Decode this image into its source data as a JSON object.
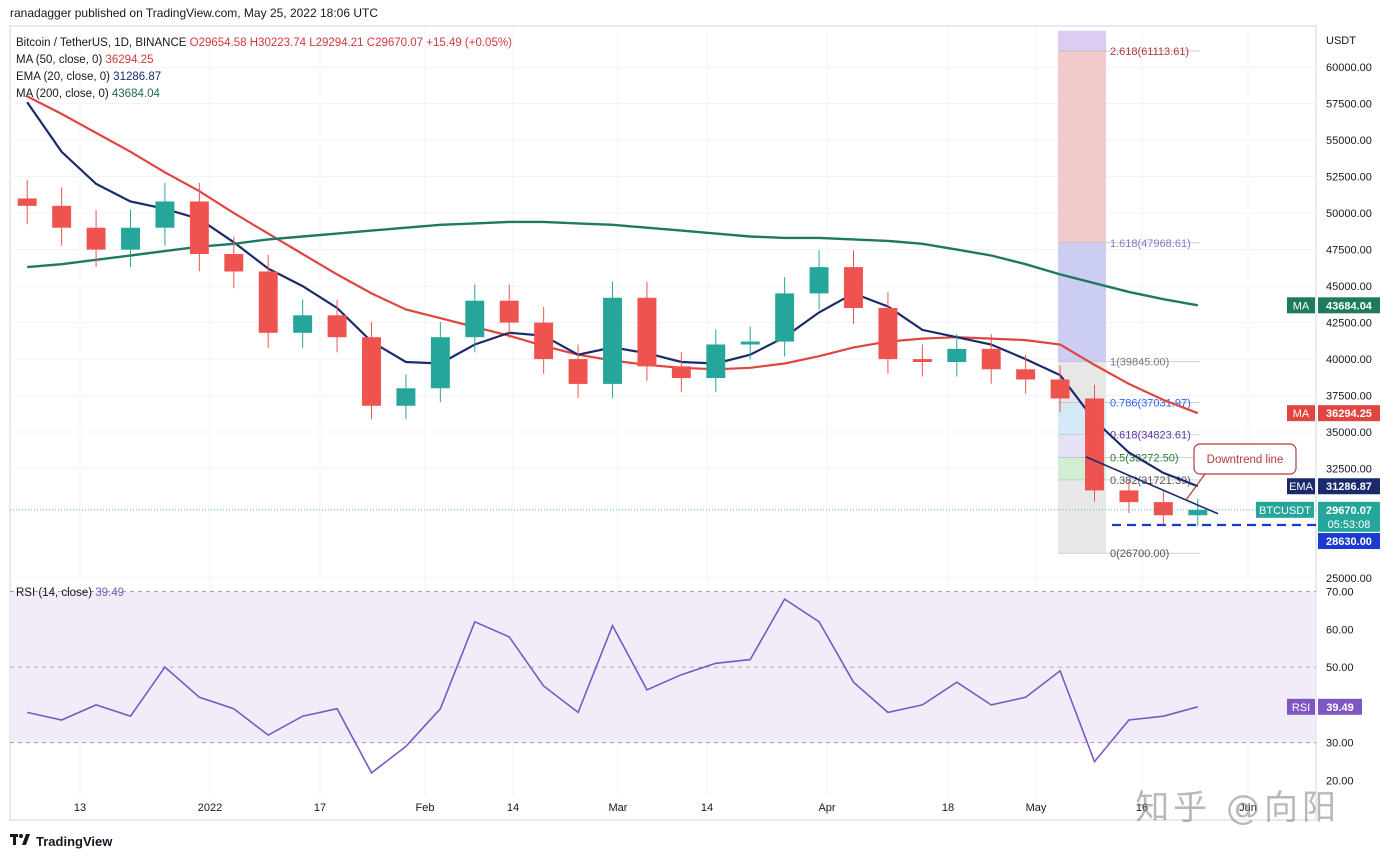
{
  "header": {
    "publisher": "ranadagger published on TradingView.com, May 25, 2022 18:06 UTC",
    "symbol": "Bitcoin / TetherUS, 1D, BINANCE",
    "ohlc": "O29654.58 H30223.74 L29294.21 C29670.07 +15.49 (+0.05%)",
    "ma50_label": "MA (50, close, 0)",
    "ma50_value": "36294.25",
    "ema20_label": "EMA (20, close, 0)",
    "ema20_value": "31286.87",
    "ma200_label": "MA (200, close, 0)",
    "ma200_value": "43684.04"
  },
  "rsi_legend": {
    "label": "RSI (14, close)",
    "value": "39.49"
  },
  "footer": {
    "brand": "TradingView",
    "logo": "tradingview-logo-icon"
  },
  "watermark": "知乎 @向阳",
  "colors": {
    "up": "#26a69a",
    "down": "#ef5350",
    "ma50": "#e0453f",
    "ema20": "#1a2a6c",
    "ma200": "#1e7a5f",
    "rsi": "#7e57c2",
    "rsi_band": "#ede7f6"
  },
  "chart_data": [
    {
      "type": "line",
      "title": "",
      "ylabel": "USDT",
      "xlabel": "",
      "x_tick_labels": [
        "13",
        "2022",
        "17",
        "Feb",
        "14",
        "Mar",
        "14",
        "Apr",
        "18",
        "May",
        "16",
        "Jun"
      ],
      "y_tick_labels": [
        "60000.00",
        "57500.00",
        "55000.00",
        "52500.00",
        "50000.00",
        "47500.00",
        "45000.00",
        "42500.00",
        "40000.00",
        "37500.00",
        "35000.00",
        "32500.00",
        "25000.00"
      ],
      "ylim": [
        25000,
        62000
      ],
      "x": [
        "2021-12-06",
        "2021-12-11",
        "2021-12-16",
        "2021-12-21",
        "2021-12-26",
        "2021-12-31",
        "2022-01-05",
        "2022-01-10",
        "2022-01-15",
        "2022-01-20",
        "2022-01-25",
        "2022-01-30",
        "2022-02-04",
        "2022-02-09",
        "2022-02-14",
        "2022-02-19",
        "2022-02-24",
        "2022-03-01",
        "2022-03-06",
        "2022-03-11",
        "2022-03-16",
        "2022-03-21",
        "2022-03-26",
        "2022-03-31",
        "2022-04-05",
        "2022-04-10",
        "2022-04-15",
        "2022-04-20",
        "2022-04-25",
        "2022-04-30",
        "2022-05-05",
        "2022-05-10",
        "2022-05-15",
        "2022-05-20",
        "2022-05-25"
      ],
      "series": [
        {
          "name": "Bitcoin / TetherUS",
          "values": [
            50500,
            49000,
            47500,
            49000,
            50800,
            47200,
            46000,
            41800,
            43000,
            41500,
            36800,
            38000,
            41500,
            44000,
            42500,
            40000,
            38300,
            44200,
            39500,
            38700,
            41000,
            41200,
            44500,
            46300,
            43500,
            40000,
            39800,
            40700,
            39300,
            38600,
            37300,
            31000,
            30200,
            29300,
            29670
          ]
        },
        {
          "name": "MA (50, close, 0)",
          "values": [
            58000,
            56800,
            55500,
            54200,
            52800,
            51500,
            50000,
            48600,
            47200,
            45800,
            44500,
            43400,
            42800,
            42200,
            41600,
            40900,
            40300,
            39900,
            39600,
            39400,
            39300,
            39400,
            39700,
            40200,
            40800,
            41200,
            41400,
            41500,
            41400,
            41300,
            41000,
            39600,
            38300,
            37200,
            36294
          ]
        },
        {
          "name": "EMA (20, close, 0)",
          "values": [
            57600,
            54200,
            52000,
            50800,
            50300,
            49600,
            48000,
            46200,
            45000,
            43500,
            41200,
            39800,
            39700,
            41000,
            41800,
            41600,
            40300,
            40800,
            40400,
            39800,
            39700,
            40300,
            41500,
            43200,
            44500,
            43600,
            42000,
            41500,
            41000,
            40000,
            38900,
            35800,
            33600,
            32200,
            31287
          ]
        },
        {
          "name": "MA (200, close, 0)",
          "values": [
            46300,
            46500,
            46800,
            47100,
            47400,
            47700,
            47900,
            48200,
            48400,
            48600,
            48800,
            49000,
            49200,
            49300,
            49400,
            49400,
            49300,
            49200,
            49000,
            48800,
            48600,
            48400,
            48300,
            48300,
            48200,
            48100,
            47900,
            47500,
            47100,
            46500,
            45800,
            45200,
            44600,
            44100,
            43684
          ]
        }
      ],
      "annotations": [
        {
          "text": "2.618(61113.61)",
          "value": 61113.61
        },
        {
          "text": "1.618(47968.61)",
          "value": 47968.61
        },
        {
          "text": "1(39845.00)",
          "value": 39845
        },
        {
          "text": "0.786(37031.97)",
          "value": 37031.97
        },
        {
          "text": "0.618(34823.61)",
          "value": 34823.61
        },
        {
          "text": "0.5(33272.50)",
          "value": 33272.5
        },
        {
          "text": "0.382(31721.39)",
          "value": 31721.39
        },
        {
          "text": "0(26700.00)",
          "value": 26700
        },
        {
          "text": "Downtrend line"
        }
      ],
      "support_level": {
        "value": 28630,
        "label": "28630.00"
      },
      "price_tags": [
        {
          "name": "MA",
          "text": "43684.04"
        },
        {
          "name": "MA",
          "text": "36294.25"
        },
        {
          "name": "EMA",
          "text": "31286.87"
        },
        {
          "name": "BTCUSDT",
          "text": "29670.07",
          "countdown": "05:53:08"
        }
      ],
      "grid": true
    },
    {
      "type": "line",
      "title": "",
      "y_tick_labels": [
        "70.00",
        "60.00",
        "50.00",
        "40.00",
        "30.00",
        "20.00"
      ],
      "ylim": [
        18,
        72
      ],
      "x": [
        "2021-12-06",
        "2021-12-11",
        "2021-12-16",
        "2021-12-21",
        "2021-12-26",
        "2021-12-31",
        "2022-01-05",
        "2022-01-10",
        "2022-01-15",
        "2022-01-20",
        "2022-01-25",
        "2022-01-30",
        "2022-02-04",
        "2022-02-09",
        "2022-02-14",
        "2022-02-19",
        "2022-02-24",
        "2022-03-01",
        "2022-03-06",
        "2022-03-11",
        "2022-03-16",
        "2022-03-21",
        "2022-03-26",
        "2022-03-31",
        "2022-04-05",
        "2022-04-10",
        "2022-04-15",
        "2022-04-20",
        "2022-04-25",
        "2022-04-30",
        "2022-05-05",
        "2022-05-10",
        "2022-05-15",
        "2022-05-20",
        "2022-05-25"
      ],
      "series": [
        {
          "name": "RSI (14, close)",
          "values": [
            38,
            36,
            40,
            37,
            50,
            42,
            39,
            32,
            37,
            39,
            22,
            29,
            39,
            62,
            58,
            45,
            38,
            61,
            44,
            48,
            51,
            52,
            68,
            62,
            46,
            38,
            40,
            46,
            40,
            42,
            49,
            25,
            36,
            37,
            39.49
          ]
        }
      ],
      "band": [
        30,
        70
      ],
      "grid": true
    }
  ]
}
